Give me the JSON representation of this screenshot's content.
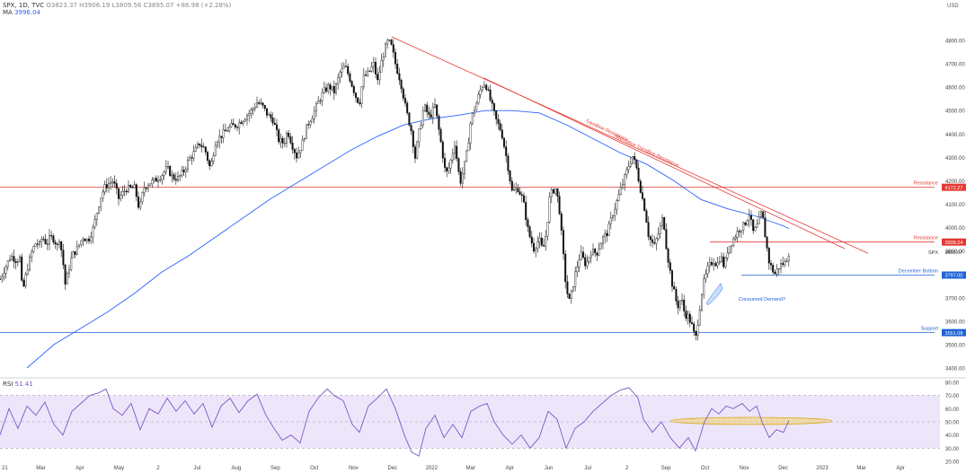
{
  "header": {
    "symbol": "SPX, 1D, TVC",
    "ohlc": "O3823.37 H3906.19 L3809.56 C3895.07 +86.98 (+2.28%)",
    "ma_label": "MA",
    "ma_value": "3996.04",
    "rsi_label": "RSI",
    "rsi_value": "51.41"
  },
  "chart_data": {
    "type": "candlestick",
    "currency": "USD",
    "price_axis": {
      "ticks": [
        3400,
        3500,
        3600,
        3700,
        3800,
        3900,
        4000,
        4100,
        4200,
        4300,
        4400,
        4500,
        4600,
        4700,
        4800
      ]
    },
    "rsi_axis": {
      "ticks": [
        20,
        30,
        40,
        50,
        60,
        70,
        80
      ],
      "labels": [
        "20.00",
        "30.00",
        "40.00",
        "50.00",
        "60.00",
        "70.00",
        "80.00"
      ]
    },
    "x_labels": [
      "21",
      "Mar",
      "Apr",
      "May",
      "2",
      "Jul",
      "Aug",
      "Sep",
      "Oct",
      "Nov",
      "Dec",
      "2022",
      "Mar",
      "Apr",
      "Jun",
      "Jul",
      "2",
      "Sep",
      "Oct",
      "Nov",
      "Dec",
      "2023",
      "Mar",
      "Apr"
    ],
    "price_path": [
      [
        0,
        3780
      ],
      [
        6,
        3830
      ],
      [
        12,
        3880
      ],
      [
        18,
        3860
      ],
      [
        22,
        3870
      ],
      [
        25,
        3720
      ],
      [
        30,
        3820
      ],
      [
        36,
        3905
      ],
      [
        40,
        3935
      ],
      [
        44,
        3925
      ],
      [
        47,
        3960
      ],
      [
        52,
        3930
      ],
      [
        56,
        3960
      ],
      [
        60,
        3950
      ],
      [
        64,
        3920
      ],
      [
        66,
        3955
      ],
      [
        70,
        3865
      ],
      [
        72,
        3750
      ],
      [
        74,
        3780
      ],
      [
        80,
        3880
      ],
      [
        86,
        3910
      ],
      [
        92,
        3960
      ],
      [
        98,
        3945
      ],
      [
        104,
        4000
      ],
      [
        108,
        4070
      ],
      [
        112,
        4130
      ],
      [
        116,
        4170
      ],
      [
        120,
        4185
      ],
      [
        126,
        4200
      ],
      [
        132,
        4125
      ],
      [
        140,
        4165
      ],
      [
        150,
        4170
      ],
      [
        155,
        4075
      ],
      [
        160,
        4170
      ],
      [
        166,
        4190
      ],
      [
        172,
        4200
      ],
      [
        180,
        4225
      ],
      [
        186,
        4255
      ],
      [
        192,
        4215
      ],
      [
        198,
        4210
      ],
      [
        205,
        4245
      ],
      [
        210,
        4290
      ],
      [
        216,
        4320
      ],
      [
        222,
        4360
      ],
      [
        228,
        4335
      ],
      [
        234,
        4250
      ],
      [
        240,
        4370
      ],
      [
        248,
        4400
      ],
      [
        256,
        4430
      ],
      [
        264,
        4440
      ],
      [
        272,
        4470
      ],
      [
        280,
        4500
      ],
      [
        286,
        4535
      ],
      [
        292,
        4520
      ],
      [
        298,
        4480
      ],
      [
        304,
        4460
      ],
      [
        310,
        4375
      ],
      [
        316,
        4360
      ],
      [
        320,
        4415
      ],
      [
        325,
        4355
      ],
      [
        330,
        4305
      ],
      [
        336,
        4355
      ],
      [
        342,
        4440
      ],
      [
        348,
        4480
      ],
      [
        354,
        4535
      ],
      [
        360,
        4580
      ],
      [
        366,
        4605
      ],
      [
        372,
        4580
      ],
      [
        378,
        4660
      ],
      [
        384,
        4690
      ],
      [
        390,
        4630
      ],
      [
        396,
        4560
      ],
      [
        400,
        4530
      ],
      [
        404,
        4640
      ],
      [
        410,
        4660
      ],
      [
        416,
        4700
      ],
      [
        420,
        4620
      ],
      [
        424,
        4700
      ],
      [
        428,
        4760
      ],
      [
        432,
        4800
      ],
      [
        436,
        4770
      ],
      [
        440,
        4700
      ],
      [
        446,
        4620
      ],
      [
        452,
        4500
      ],
      [
        458,
        4410
      ],
      [
        462,
        4300
      ],
      [
        466,
        4400
      ],
      [
        472,
        4520
      ],
      [
        478,
        4470
      ],
      [
        484,
        4520
      ],
      [
        490,
        4380
      ],
      [
        496,
        4225
      ],
      [
        500,
        4260
      ],
      [
        506,
        4360
      ],
      [
        512,
        4190
      ],
      [
        516,
        4250
      ],
      [
        520,
        4330
      ],
      [
        524,
        4460
      ],
      [
        530,
        4530
      ],
      [
        536,
        4605
      ],
      [
        540,
        4620
      ],
      [
        546,
        4540
      ],
      [
        552,
        4460
      ],
      [
        558,
        4410
      ],
      [
        564,
        4290
      ],
      [
        570,
        4150
      ],
      [
        576,
        4170
      ],
      [
        582,
        4120
      ],
      [
        588,
        3980
      ],
      [
        594,
        3910
      ],
      [
        600,
        3950
      ],
      [
        604,
        3900
      ],
      [
        608,
        3980
      ],
      [
        612,
        4140
      ],
      [
        618,
        4170
      ],
      [
        622,
        4100
      ],
      [
        626,
        3920
      ],
      [
        630,
        3740
      ],
      [
        634,
        3680
      ],
      [
        640,
        3800
      ],
      [
        646,
        3890
      ],
      [
        652,
        3840
      ],
      [
        658,
        3900
      ],
      [
        664,
        3890
      ],
      [
        670,
        3950
      ],
      [
        676,
        3980
      ],
      [
        682,
        4060
      ],
      [
        688,
        4130
      ],
      [
        694,
        4200
      ],
      [
        700,
        4270
      ],
      [
        704,
        4305
      ],
      [
        708,
        4260
      ],
      [
        714,
        4140
      ],
      [
        718,
        4070
      ],
      [
        722,
        3960
      ],
      [
        728,
        3920
      ],
      [
        734,
        3990
      ],
      [
        738,
        4050
      ],
      [
        742,
        3900
      ],
      [
        748,
        3760
      ],
      [
        754,
        3660
      ],
      [
        758,
        3700
      ],
      [
        762,
        3630
      ],
      [
        766,
        3620
      ],
      [
        770,
        3580
      ],
      [
        774,
        3520
      ],
      [
        778,
        3640
      ],
      [
        782,
        3750
      ],
      [
        788,
        3830
      ],
      [
        794,
        3860
      ],
      [
        798,
        3840
      ],
      [
        802,
        3880
      ],
      [
        806,
        3830
      ],
      [
        810,
        3910
      ],
      [
        816,
        3950
      ],
      [
        822,
        3990
      ],
      [
        828,
        4010
      ],
      [
        834,
        4060
      ],
      [
        838,
        3980
      ],
      [
        842,
        4000
      ],
      [
        848,
        4070
      ],
      [
        852,
        3950
      ],
      [
        856,
        3850
      ],
      [
        862,
        3800
      ],
      [
        868,
        3840
      ],
      [
        874,
        3850
      ],
      [
        878,
        3895
      ]
    ],
    "ma_path": [
      [
        30,
        3400
      ],
      [
        60,
        3500
      ],
      [
        90,
        3570
      ],
      [
        120,
        3640
      ],
      [
        150,
        3720
      ],
      [
        180,
        3810
      ],
      [
        210,
        3880
      ],
      [
        240,
        3960
      ],
      [
        270,
        4040
      ],
      [
        300,
        4120
      ],
      [
        330,
        4190
      ],
      [
        360,
        4260
      ],
      [
        390,
        4330
      ],
      [
        420,
        4390
      ],
      [
        450,
        4440
      ],
      [
        480,
        4465
      ],
      [
        510,
        4480
      ],
      [
        540,
        4500
      ],
      [
        570,
        4500
      ],
      [
        600,
        4490
      ],
      [
        630,
        4440
      ],
      [
        660,
        4380
      ],
      [
        690,
        4320
      ],
      [
        720,
        4270
      ],
      [
        750,
        4200
      ],
      [
        780,
        4120
      ],
      [
        810,
        4080
      ],
      [
        840,
        4050
      ],
      [
        870,
        4010
      ],
      [
        878,
        3996
      ]
    ],
    "rsi_path": [
      [
        0,
        40
      ],
      [
        10,
        60
      ],
      [
        20,
        45
      ],
      [
        30,
        62
      ],
      [
        40,
        55
      ],
      [
        50,
        65
      ],
      [
        60,
        48
      ],
      [
        70,
        40
      ],
      [
        80,
        58
      ],
      [
        90,
        64
      ],
      [
        100,
        70
      ],
      [
        110,
        72
      ],
      [
        118,
        75
      ],
      [
        126,
        60
      ],
      [
        136,
        55
      ],
      [
        146,
        64
      ],
      [
        156,
        44
      ],
      [
        166,
        60
      ],
      [
        176,
        56
      ],
      [
        186,
        68
      ],
      [
        196,
        58
      ],
      [
        206,
        66
      ],
      [
        216,
        56
      ],
      [
        226,
        64
      ],
      [
        236,
        46
      ],
      [
        246,
        62
      ],
      [
        256,
        68
      ],
      [
        266,
        57
      ],
      [
        276,
        66
      ],
      [
        286,
        71
      ],
      [
        296,
        55
      ],
      [
        304,
        46
      ],
      [
        314,
        36
      ],
      [
        324,
        40
      ],
      [
        334,
        34
      ],
      [
        344,
        58
      ],
      [
        354,
        68
      ],
      [
        364,
        75
      ],
      [
        372,
        70
      ],
      [
        382,
        66
      ],
      [
        392,
        48
      ],
      [
        400,
        42
      ],
      [
        410,
        62
      ],
      [
        420,
        68
      ],
      [
        430,
        75
      ],
      [
        440,
        60
      ],
      [
        450,
        40
      ],
      [
        458,
        27
      ],
      [
        466,
        24
      ],
      [
        474,
        45
      ],
      [
        484,
        55
      ],
      [
        494,
        38
      ],
      [
        504,
        48
      ],
      [
        514,
        38
      ],
      [
        524,
        58
      ],
      [
        534,
        62
      ],
      [
        542,
        64
      ],
      [
        550,
        50
      ],
      [
        560,
        40
      ],
      [
        570,
        33
      ],
      [
        580,
        40
      ],
      [
        590,
        30
      ],
      [
        600,
        38
      ],
      [
        610,
        58
      ],
      [
        620,
        52
      ],
      [
        630,
        30
      ],
      [
        640,
        45
      ],
      [
        650,
        50
      ],
      [
        660,
        58
      ],
      [
        670,
        64
      ],
      [
        680,
        70
      ],
      [
        690,
        74
      ],
      [
        700,
        76
      ],
      [
        710,
        68
      ],
      [
        716,
        52
      ],
      [
        726,
        42
      ],
      [
        736,
        50
      ],
      [
        746,
        38
      ],
      [
        756,
        30
      ],
      [
        766,
        38
      ],
      [
        774,
        28
      ],
      [
        784,
        50
      ],
      [
        792,
        60
      ],
      [
        800,
        56
      ],
      [
        808,
        62
      ],
      [
        816,
        60
      ],
      [
        826,
        64
      ],
      [
        834,
        58
      ],
      [
        842,
        62
      ],
      [
        848,
        50
      ],
      [
        856,
        38
      ],
      [
        864,
        44
      ],
      [
        872,
        42
      ],
      [
        878,
        51
      ]
    ],
    "trendlines": [
      {
        "label": "Trendline Resistance",
        "from": [
          436,
          4815
        ],
        "to": [
          966,
          3890
        ],
        "color": "#e53935"
      },
      {
        "label": "Alternative Trendline Resistance",
        "from": [
          538,
          4640
        ],
        "to": [
          940,
          3910
        ],
        "color": "#e53935"
      }
    ],
    "levels": [
      {
        "label": "Resistance",
        "value": 4172.27,
        "badge": "4172.27",
        "color": "#e53935",
        "x_from": 0,
        "x_to": 1040
      },
      {
        "label": "Resistance",
        "value": 3938.24,
        "badge": "3938.24",
        "color": "#e53935",
        "x_from": 790,
        "x_to": 1040
      },
      {
        "label": "December Bottom",
        "value": 3797.0,
        "badge": "3797.00",
        "color": "#1e63d6",
        "x_from": 825,
        "x_to": 1040
      },
      {
        "label": "Support",
        "value": 3551.08,
        "badge": "3551.08",
        "color": "#1e63d6",
        "x_from": 0,
        "x_to": 1040
      }
    ],
    "last_price": {
      "label": "SPX",
      "value": 3895.07,
      "badge": "3895.07"
    },
    "annotations": [
      {
        "text": "Consumed Demand?",
        "at": [
          808,
          3700
        ]
      }
    ],
    "rsi_band": [
      30,
      70
    ],
    "grid": false
  }
}
